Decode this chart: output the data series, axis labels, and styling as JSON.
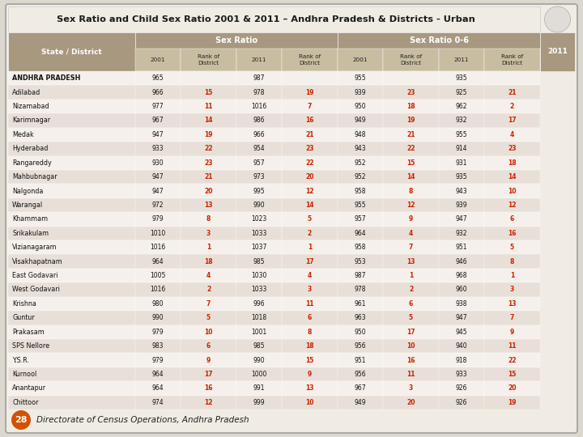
{
  "title": "Sex Ratio and Child Sex Ratio 2001 & 2011 – Andhra Pradesh & Districts - Urban",
  "footer": "Directorate of Census Operations, Andhra Pradesh",
  "page_num": "28",
  "header_bg": "#a89880",
  "subheader_bg": "#c8bda0",
  "row_color_odd": "#f5f0eb",
  "row_color_even": "#e8e0d8",
  "title_bg": "#f0ece4",
  "rank_color": "#cc2200",
  "text_color": "#111111",
  "districts": [
    "ANDHRA PRADESH",
    "Adilabad",
    "Nizamabad",
    "Karimnagar",
    "Medak",
    "Hyderabad",
    "Rangareddy",
    "Mahbubnagar",
    "Nalgonda",
    "Warangal",
    "Khammam",
    "Srikakulam",
    "Vizianagaram",
    "Visakhapatnam",
    "East Godavari",
    "West Godavari",
    "Krishna",
    "Guntur",
    "Prakasam",
    "SPS Nellore",
    "Y.S.R.",
    "Kurnool",
    "Anantapur",
    "Chittoor"
  ],
  "sr_2001": [
    965,
    966,
    977,
    967,
    947,
    933,
    930,
    947,
    947,
    972,
    979,
    1010,
    1016,
    964,
    1005,
    1016,
    980,
    990,
    979,
    983,
    979,
    964,
    964,
    974
  ],
  "sr_2001_rank": [
    "",
    15,
    11,
    14,
    19,
    22,
    23,
    21,
    20,
    13,
    8,
    3,
    1,
    18,
    4,
    2,
    7,
    5,
    10,
    6,
    9,
    17,
    16,
    12
  ],
  "sr_2011": [
    987,
    978,
    1016,
    986,
    966,
    954,
    957,
    973,
    995,
    990,
    1023,
    1033,
    1037,
    985,
    1030,
    1033,
    996,
    1018,
    1001,
    985,
    990,
    1000,
    991,
    999
  ],
  "sr_2011_rank": [
    "",
    19,
    7,
    16,
    21,
    23,
    22,
    20,
    12,
    14,
    5,
    2,
    1,
    17,
    4,
    3,
    11,
    6,
    8,
    18,
    15,
    9,
    13,
    10
  ],
  "csr_2001": [
    955,
    939,
    950,
    949,
    948,
    943,
    952,
    952,
    958,
    955,
    957,
    964,
    958,
    953,
    987,
    978,
    961,
    963,
    950,
    956,
    951,
    956,
    967,
    949
  ],
  "csr_2001_rank": [
    "",
    23,
    18,
    19,
    21,
    22,
    15,
    14,
    8,
    12,
    9,
    4,
    7,
    13,
    1,
    2,
    6,
    5,
    17,
    10,
    16,
    11,
    3,
    20
  ],
  "csr_2011": [
    935,
    925,
    962,
    932,
    955,
    914,
    931,
    935,
    943,
    939,
    947,
    932,
    951,
    946,
    968,
    960,
    938,
    947,
    945,
    940,
    918,
    933,
    926,
    926
  ],
  "csr_2011_rank": [
    "",
    21,
    2,
    17,
    4,
    23,
    18,
    14,
    10,
    12,
    6,
    16,
    5,
    8,
    1,
    3,
    13,
    7,
    9,
    11,
    22,
    15,
    20,
    19
  ]
}
